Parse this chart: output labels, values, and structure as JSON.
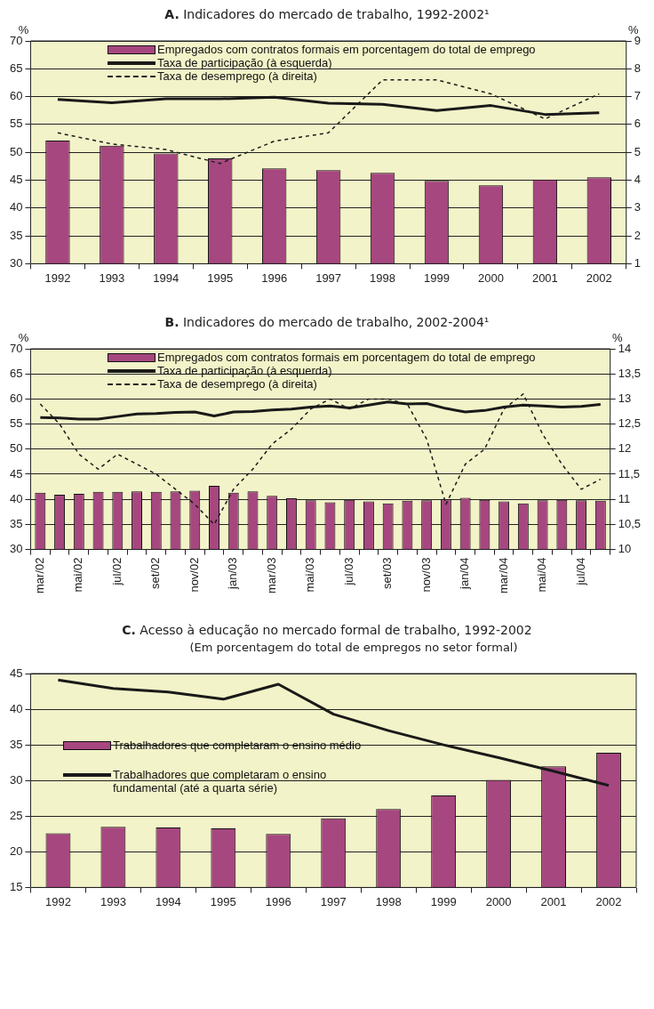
{
  "chart_data": [
    {
      "type": "bar",
      "title": "A. Indicadores do mercado de trabalho, 1992-2002¹",
      "ylabel": "%",
      "y2label": "%",
      "categories": [
        "1992",
        "1993",
        "1994",
        "1995",
        "1996",
        "1997",
        "1998",
        "1999",
        "2000",
        "2001",
        "2002"
      ],
      "series": [
        {
          "name": "Empregados com contratos formais em porcentagem do total de emprego",
          "color": "#a6477f",
          "values": [
            52.1,
            51.2,
            49.8,
            48.9,
            47.1,
            46.8,
            46.3,
            44.9,
            44.1,
            45.1,
            45.5
          ]
        },
        {
          "name": "Taxa de participação (à esquerda)",
          "type": "line",
          "color": "#1a1a1a",
          "line_style": "solid",
          "values": [
            59.5,
            58.9,
            59.6,
            59.6,
            59.9,
            58.8,
            58.6,
            57.5,
            58.4,
            56.8,
            57.1
          ]
        },
        {
          "name": "Taxa de desemprego (à direita)",
          "type": "line",
          "axis": "y2",
          "color": "#1a1a1a",
          "line_style": "dashed",
          "values": [
            5.7,
            5.3,
            5.1,
            4.6,
            5.4,
            5.7,
            7.6,
            7.6,
            7.1,
            6.2,
            7.1
          ]
        }
      ],
      "ylim": [
        30,
        70
      ],
      "yticks": [
        30,
        35,
        40,
        45,
        50,
        55,
        60,
        65,
        70
      ],
      "y2lim": [
        1,
        9
      ],
      "y2ticks": [
        1,
        2,
        3,
        4,
        5,
        6,
        7,
        8,
        9
      ],
      "grid": "y",
      "legend": "top",
      "marker": "none"
    },
    {
      "type": "bar",
      "title": "B. Indicadores do mercado de trabalho, 2002-2004¹",
      "ylabel": "%",
      "y2label": "%",
      "categories": [
        "mar/02",
        null,
        "mai/02",
        null,
        "jul/02",
        null,
        "set/02",
        null,
        "nov/02",
        null,
        "jan/03",
        null,
        "mar/03",
        null,
        "mai/03",
        null,
        "jul/03",
        null,
        "set/03",
        null,
        "nov/03",
        null,
        "jan/04",
        null,
        "mar/04",
        null,
        "mai/04",
        null,
        "jul/04",
        null
      ],
      "series": [
        {
          "name": "Empregados com contratos formais em porcentagem do total de emprego",
          "color": "#a6477f",
          "values": [
            41.3,
            40.9,
            41.1,
            41.5,
            41.5,
            41.6,
            41.5,
            41.6,
            41.7,
            42.7,
            41.3,
            41.6,
            40.7,
            40.2,
            39.8,
            39.4,
            39.9,
            39.6,
            39.2,
            39.7,
            39.8,
            40.0,
            40.3,
            39.9,
            39.6,
            39.2,
            39.8,
            39.9,
            39.8,
            39.7
          ]
        },
        {
          "name": "Taxa de participação (à esquerda)",
          "type": "line",
          "color": "#1a1a1a",
          "line_style": "solid",
          "values": [
            56.3,
            56.2,
            56.0,
            56.0,
            56.5,
            57.0,
            57.1,
            57.3,
            57.4,
            56.6,
            57.4,
            57.5,
            57.8,
            58.0,
            58.4,
            58.6,
            58.2,
            58.8,
            59.4,
            59.0,
            59.1,
            58.1,
            57.4,
            57.7,
            58.4,
            58.8,
            58.6,
            58.4,
            58.5,
            58.9
          ]
        },
        {
          "name": "Taxa de desemprego (à direita)",
          "type": "line",
          "axis": "y2",
          "color": "#1a1a1a",
          "line_style": "dashed",
          "values": [
            12.9,
            12.5,
            11.9,
            11.6,
            11.9,
            11.7,
            11.5,
            11.2,
            10.9,
            10.5,
            11.2,
            11.6,
            12.1,
            12.4,
            12.8,
            13.0,
            12.8,
            13.0,
            13.0,
            12.9,
            12.2,
            10.9,
            11.7,
            12.0,
            12.8,
            13.1,
            12.3,
            11.7,
            11.2,
            11.4
          ]
        }
      ],
      "ylim": [
        30,
        70
      ],
      "yticks": [
        30,
        35,
        40,
        45,
        50,
        55,
        60,
        65,
        70
      ],
      "y2lim": [
        10,
        14
      ],
      "y2ticks": [
        10,
        {
          "value": 10.5,
          "label": "10,5"
        },
        11,
        {
          "value": 11.5,
          "label": "11,5"
        },
        12,
        {
          "value": 12.5,
          "label": "12,5"
        },
        13,
        {
          "value": 13.5,
          "label": "13,5"
        },
        14
      ],
      "grid": "y",
      "legend": "top",
      "marker": "none"
    },
    {
      "type": "bar",
      "title": "C. Acesso à educação no mercado formal de trabalho, 1992-2002",
      "subtitle": "(Em porcentagem do total de empregos no setor formal)",
      "categories": [
        "1992",
        "1993",
        "1994",
        "1995",
        "1996",
        "1997",
        "1998",
        "1999",
        "2000",
        "2001",
        "2002"
      ],
      "series": [
        {
          "name": "Trabalhadores que completaram o ensino médio",
          "color": "#a6477f",
          "values": [
            22.6,
            23.5,
            23.4,
            23.3,
            22.5,
            24.7,
            26.0,
            27.9,
            30.1,
            32.0,
            33.9
          ]
        },
        {
          "name": "Trabalhadores que completaram o ensino fundamental (até a quarta série)",
          "type": "line",
          "color": "#1a1a1a",
          "line_style": "solid",
          "values": [
            44.1,
            42.9,
            42.4,
            41.4,
            43.5,
            39.3,
            37.0,
            35.0,
            33.2,
            31.3,
            29.3
          ]
        }
      ],
      "ylim": [
        15,
        45
      ],
      "yticks": [
        15,
        20,
        25,
        30,
        35,
        40,
        45
      ],
      "grid": "y",
      "legend": "left",
      "marker": "none"
    }
  ]
}
